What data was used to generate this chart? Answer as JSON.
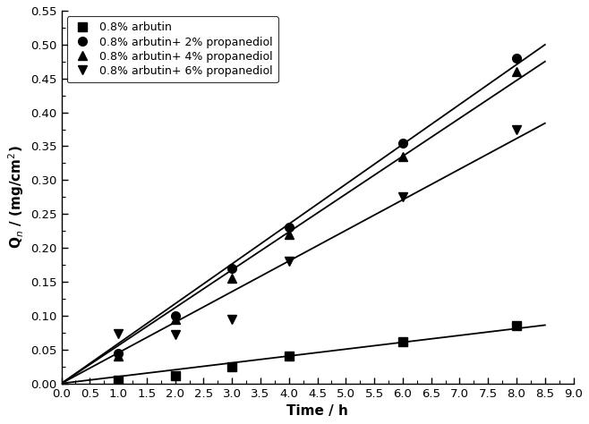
{
  "series": [
    {
      "label": "0.8% arbutin",
      "marker": "s",
      "x": [
        1,
        2,
        3,
        4,
        6,
        8
      ],
      "y": [
        0.005,
        0.012,
        0.025,
        0.04,
        0.062,
        0.085
      ],
      "fit_x": [
        0,
        8
      ],
      "fit_y": [
        0.0,
        0.085
      ]
    },
    {
      "label": "0.8% arbutin+ 2% propanediol",
      "marker": "o",
      "x": [
        1,
        2,
        3,
        4,
        6,
        8
      ],
      "y": [
        0.045,
        0.1,
        0.17,
        0.23,
        0.355,
        0.48
      ],
      "fit_x": [
        0,
        8
      ],
      "fit_y": [
        0.0,
        0.48
      ]
    },
    {
      "label": "0.8% arbutin+ 4% propanediol",
      "marker": "^",
      "x": [
        1,
        2,
        3,
        4,
        6,
        8
      ],
      "y": [
        0.04,
        0.095,
        0.155,
        0.22,
        0.335,
        0.46
      ],
      "fit_x": [
        0,
        8
      ],
      "fit_y": [
        0.0,
        0.46
      ]
    },
    {
      "label": "0.8% arbutin+ 6% propanediol",
      "marker": "v",
      "x": [
        1,
        2,
        3,
        4,
        6,
        8
      ],
      "y": [
        0.073,
        0.072,
        0.095,
        0.18,
        0.275,
        0.375
      ],
      "fit_x": [
        0,
        8
      ],
      "fit_y": [
        0.0,
        0.375
      ]
    }
  ],
  "xlim": [
    0.0,
    9.0
  ],
  "ylim": [
    0.0,
    0.55
  ],
  "xlabel": "Time / h",
  "ylabel": "Q$_n$ / (mg/cm$^2$)",
  "xticks": [
    0.0,
    0.5,
    1.0,
    1.5,
    2.0,
    2.5,
    3.0,
    3.5,
    4.0,
    4.5,
    5.0,
    5.5,
    6.0,
    6.5,
    7.0,
    7.5,
    8.0,
    8.5,
    9.0
  ],
  "yticks": [
    0.0,
    0.05,
    0.1,
    0.15,
    0.2,
    0.25,
    0.3,
    0.35,
    0.4,
    0.45,
    0.5,
    0.55
  ],
  "line_color": "black",
  "marker_color": "black",
  "marker_size": 7,
  "line_width": 1.3,
  "legend_loc": "upper left",
  "bg_color": "#ffffff"
}
